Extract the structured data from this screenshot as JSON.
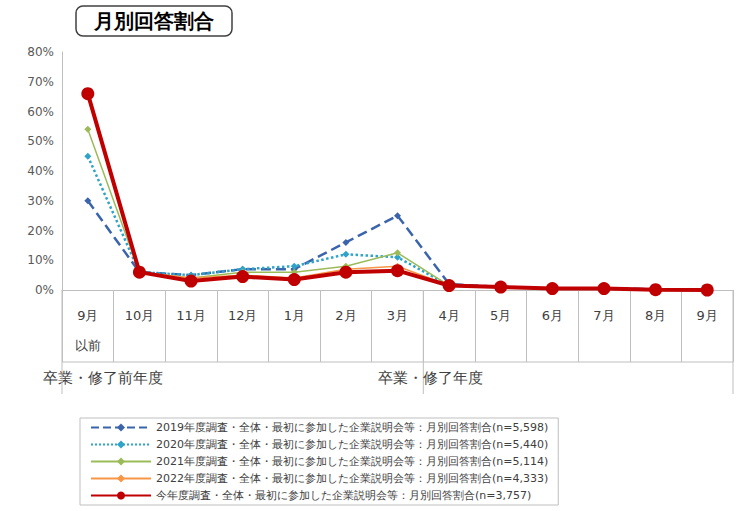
{
  "chart_data": {
    "type": "line",
    "title": "月別回答割合",
    "categories": [
      "9月\n以前",
      "10月",
      "11月",
      "12月",
      "1月",
      "2月",
      "3月",
      "4月",
      "5月",
      "6月",
      "7月",
      "8月",
      "9月"
    ],
    "category_groups": [
      {
        "label": "卒業・修了前年度",
        "from": "9月\n以前",
        "to": "3月"
      },
      {
        "label": "卒業・修了年度",
        "from": "4月",
        "to": "9月"
      }
    ],
    "series": [
      {
        "name": "2019年度調査・全体・最初に参加した企業説明会等：月別回答割合(n=5,598)",
        "color": "#3a65ad",
        "marker": "diamond",
        "line_style": "dashed",
        "values": [
          30,
          6,
          5,
          7,
          7,
          16,
          25,
          2,
          1,
          0.5,
          0.5,
          0.3,
          0.2
        ]
      },
      {
        "name": "2020年度調査・全体・最初に参加した企業説明会等：月別回答割合(n=5,440)",
        "color": "#2fa4c8",
        "marker": "diamond",
        "line_style": "dotted",
        "values": [
          45,
          6,
          5,
          7,
          8,
          12,
          11,
          1.5,
          1,
          0.5,
          0.5,
          0.2,
          0.2
        ]
      },
      {
        "name": "2021年度調査・全体・最初に参加した企業説明会等：月別回答割合(n=5,114)",
        "color": "#9bbb59",
        "marker": "diamond",
        "line_style": "solid",
        "values": [
          54,
          6,
          4,
          6,
          6,
          8,
          12.5,
          1.5,
          1,
          0.5,
          0.5,
          0.2,
          0.1
        ]
      },
      {
        "name": "2022年度調査・全体・最初に参加した企業説明会等：月別回答割合(n=4,333)",
        "color": "#f79646",
        "marker": "diamond",
        "line_style": "solid",
        "values": [
          65,
          6,
          4,
          5,
          4,
          7,
          8,
          1.5,
          1,
          0.5,
          0.5,
          0.2,
          0.1
        ]
      },
      {
        "name": "今年度調査・全体・最初に参加した企業説明会等：月別回答割合(n=3,757)",
        "color": "#c00000",
        "marker": "circle",
        "line_style": "solid",
        "values": [
          66,
          6,
          3,
          4.5,
          3.5,
          6,
          6.5,
          1.5,
          1,
          0.5,
          0.5,
          0.1,
          0
        ]
      }
    ],
    "ylim": [
      0,
      80
    ],
    "yticks": [
      {
        "value": 0,
        "label": "0%"
      },
      {
        "value": 10,
        "label": "10%"
      },
      {
        "value": 20,
        "label": "20%"
      },
      {
        "value": 30,
        "label": "30%"
      },
      {
        "value": 40,
        "label": "40%"
      },
      {
        "value": 50,
        "label": "50%"
      },
      {
        "value": 60,
        "label": "60%"
      },
      {
        "value": 70,
        "label": "70%"
      },
      {
        "value": 80,
        "label": "80%"
      }
    ],
    "grid": false,
    "legend": "bottom"
  }
}
